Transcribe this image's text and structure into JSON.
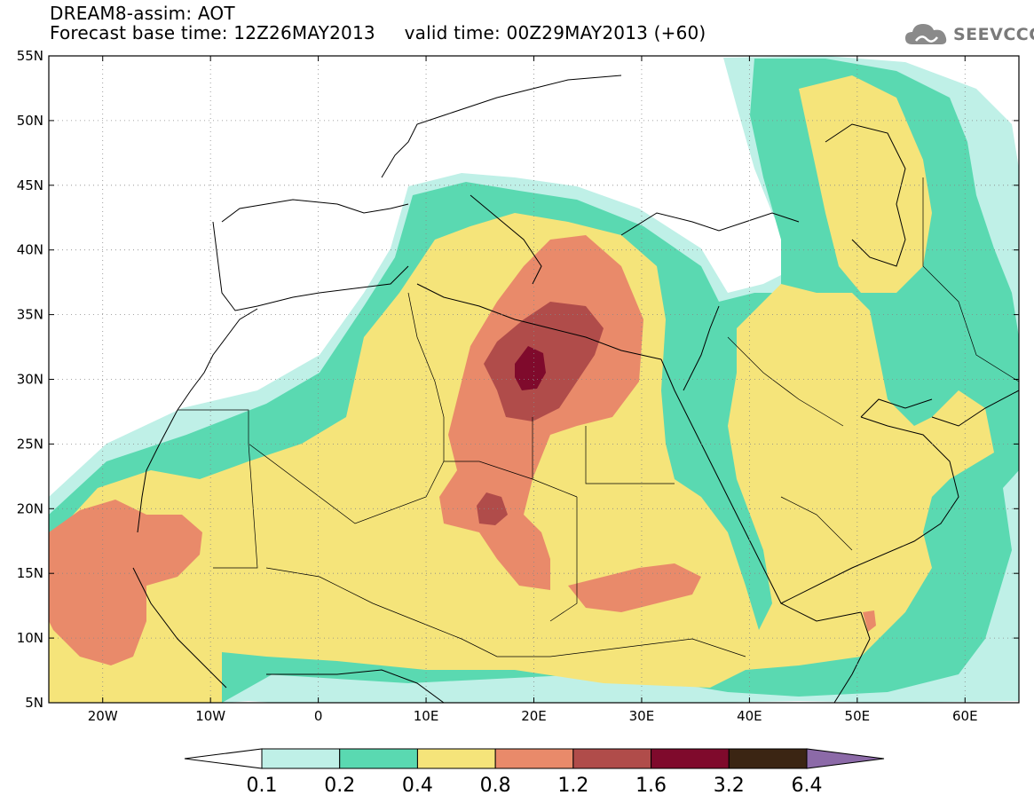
{
  "header": {
    "title": "DREAM8-assim: AOT",
    "base_time_label": "Forecast base time: 12Z26MAY2013",
    "valid_time_label": "valid time: 00Z29MAY2013 (+60)"
  },
  "logo": {
    "text": "SEEVCCC",
    "icon": "cloud-icon"
  },
  "map": {
    "lon_range": [
      -25,
      65
    ],
    "lat_range": [
      5,
      55
    ],
    "lat_ticks": [
      "55N",
      "50N",
      "45N",
      "40N",
      "35N",
      "30N",
      "25N",
      "20N",
      "15N",
      "10N",
      "5N"
    ],
    "lon_ticks": [
      "20W",
      "10W",
      "0",
      "10E",
      "20E",
      "30E",
      "40E",
      "50E",
      "60E"
    ],
    "grid": true,
    "coastlines": true
  },
  "colorbar": {
    "labels": [
      "0.1",
      "0.2",
      "0.4",
      "0.8",
      "1.2",
      "1.6",
      "3.2",
      "6.4"
    ],
    "colors": [
      "#ffffff",
      "#bff0e7",
      "#5ad9b1",
      "#f5e47a",
      "#e98a6a",
      "#b04c4a",
      "#7f0a2c",
      "#3b2513",
      "#8c6aa8"
    ]
  }
}
